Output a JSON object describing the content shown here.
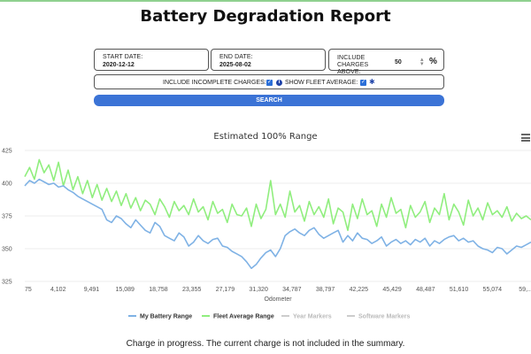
{
  "page": {
    "title": "Battery Degradation Report"
  },
  "filters": {
    "start_date": {
      "label": "START DATE:",
      "value": "2020-12-12"
    },
    "end_date": {
      "label": "END DATE:",
      "value": "2025-08-02"
    },
    "charges_above": {
      "label_line1": "INCLUDE",
      "label_line2": "CHARGES ABOVE:",
      "value": "50",
      "unit": "%"
    },
    "include_incomplete_label": "INCLUDE INCOMPLETE CHARGES:",
    "include_incomplete_checked": true,
    "show_fleet_label": "SHOW FLEET AVERAGE:",
    "show_fleet_checked": true,
    "search_label": "SEARCH"
  },
  "icons": {
    "info": "info-icon",
    "settings": "gear-icon",
    "menu": "hamburger-menu-icon",
    "spinner": "up-down-arrows-icon"
  },
  "chart_data": {
    "type": "line",
    "title": "Estimated 100% Range",
    "xlabel": "Odometer",
    "ylabel": "",
    "x_tick_labels": [
      "75",
      "4,102",
      "9,491",
      "15,089",
      "18,758",
      "23,355",
      "27,179",
      "31,320",
      "34,787",
      "38,797",
      "42,225",
      "45,429",
      "48,487",
      "51,610",
      "55,074",
      "59,..."
    ],
    "y_ticks": [
      325,
      350,
      375,
      400,
      425
    ],
    "ylim": [
      325,
      425
    ],
    "grid": true,
    "legend_position": "bottom",
    "legend": [
      {
        "name": "My Battery Range",
        "color": "#7fb2e5",
        "enabled": true
      },
      {
        "name": "Fleet Average Range",
        "color": "#90ee7e",
        "enabled": true
      },
      {
        "name": "Year Markers",
        "color": "#cccccc",
        "enabled": false
      },
      {
        "name": "Software Markers",
        "color": "#cccccc",
        "enabled": false
      }
    ],
    "series": [
      {
        "name": "My Battery Range",
        "color": "#7fb2e5",
        "values": [
          398,
          402,
          400,
          403,
          401,
          399,
          400,
          397,
          398,
          395,
          393,
          390,
          388,
          386,
          384,
          382,
          380,
          372,
          370,
          375,
          373,
          369,
          366,
          372,
          368,
          364,
          362,
          370,
          367,
          360,
          358,
          356,
          362,
          359,
          352,
          355,
          360,
          356,
          354,
          357,
          358,
          352,
          351,
          348,
          346,
          344,
          340,
          335,
          338,
          343,
          347,
          349,
          344,
          350,
          360,
          363,
          365,
          362,
          360,
          364,
          366,
          361,
          358,
          360,
          362,
          364,
          355,
          360,
          356,
          362,
          358,
          357,
          354,
          356,
          359,
          352,
          355,
          357,
          354,
          356,
          353,
          357,
          355,
          358,
          352,
          356,
          354,
          357,
          359,
          360,
          356,
          358,
          355,
          356,
          352,
          350,
          349,
          347,
          351,
          350,
          346,
          349,
          352,
          351,
          353,
          355
        ]
      },
      {
        "name": "Fleet Average Range",
        "color": "#90ee7e",
        "values": [
          405,
          412,
          403,
          418,
          408,
          414,
          402,
          416,
          398,
          410,
          395,
          405,
          392,
          402,
          389,
          399,
          387,
          396,
          386,
          394,
          383,
          392,
          381,
          389,
          379,
          387,
          384,
          376,
          388,
          382,
          374,
          386,
          379,
          383,
          376,
          388,
          378,
          382,
          372,
          386,
          377,
          380,
          370,
          384,
          376,
          375,
          381,
          367,
          384,
          373,
          380,
          402,
          376,
          384,
          374,
          394,
          378,
          383,
          371,
          386,
          376,
          382,
          374,
          388,
          369,
          381,
          378,
          364,
          384,
          373,
          388,
          376,
          379,
          367,
          384,
          374,
          389,
          377,
          380,
          366,
          383,
          374,
          378,
          386,
          370,
          381,
          376,
          392,
          372,
          384,
          378,
          368,
          387,
          375,
          381,
          372,
          385,
          376,
          379,
          374,
          382,
          371,
          377,
          373,
          375,
          372
        ]
      }
    ]
  },
  "status_message": "Charge in progress. The current charge is not included in the summary."
}
